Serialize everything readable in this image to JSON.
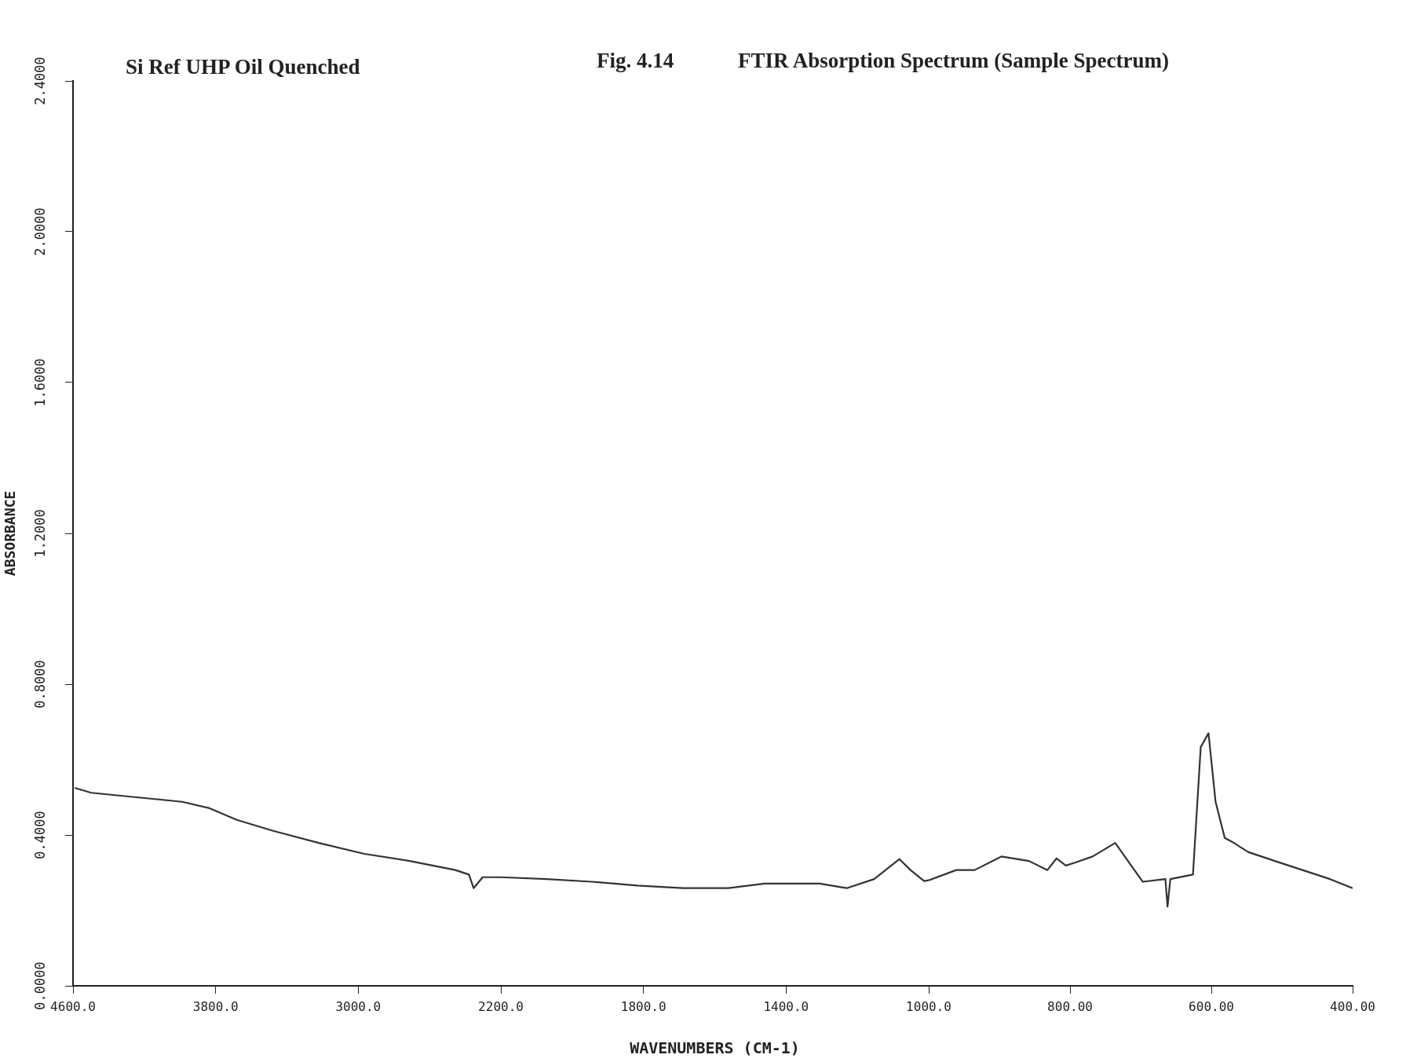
{
  "chart_data": [
    {
      "type": "line",
      "ylabel": "ABSORBANCE",
      "annotations": [
        "Si Ref UHP Oil Quenched"
      ],
      "x": [
        4590,
        4498,
        4243,
        3987,
        3834,
        3681,
        3477,
        3221,
        2966,
        2711,
        2455,
        2379,
        2353,
        2302,
        2200
      ],
      "values": [
        0.525,
        0.512,
        0.5,
        0.488,
        0.471,
        0.44,
        0.411,
        0.379,
        0.35,
        0.331,
        0.307,
        0.295,
        0.259,
        0.288,
        0.288
      ],
      "color": "#333333",
      "marker": "none",
      "line_style": "solid",
      "legend": false,
      "xlim": [
        4600,
        2200
      ],
      "xticks": [
        {
          "value": 4600,
          "label": "4600.0"
        },
        {
          "value": 3800,
          "label": "3800.0"
        },
        {
          "value": 3000,
          "label": "3000.0"
        },
        {
          "value": 2200,
          "label": "2200.0"
        }
      ],
      "ylim": [
        0,
        2.4
      ],
      "yticks": [
        {
          "value": 0,
          "label": "0.0000"
        },
        {
          "value": 0.4,
          "label": "0.4000"
        },
        {
          "value": 0.8,
          "label": "0.8000"
        },
        {
          "value": 1.2,
          "label": "1.2000"
        },
        {
          "value": 1.6,
          "label": "1.6000"
        },
        {
          "value": 2,
          "label": "2.0000"
        },
        {
          "value": 2.4,
          "label": "2.4000"
        }
      ]
    },
    {
      "type": "line",
      "xlabel": "WAVENUMBERS (CM-1)",
      "annotations": [
        "Fig. 4.14"
      ],
      "x": [
        2200,
        2072,
        1945,
        1817,
        1689,
        1562,
        1460,
        1409,
        1306,
        1230,
        1153,
        1082,
        1051,
        1013,
        1000
      ],
      "values": [
        0.288,
        0.283,
        0.276,
        0.266,
        0.259,
        0.259,
        0.271,
        0.271,
        0.271,
        0.259,
        0.283,
        0.336,
        0.307,
        0.278,
        0.28
      ],
      "color": "#333333",
      "marker": "none",
      "line_style": "solid",
      "legend": false,
      "tick_labels": "x",
      "xlim": [
        2200,
        1000
      ],
      "xticks": [
        {
          "value": 1800,
          "label": "1800.0"
        },
        {
          "value": 1400,
          "label": "1400.0"
        },
        {
          "value": 1000,
          "label": "1000.0"
        }
      ],
      "ylim": [
        0,
        2.4
      ]
    },
    {
      "type": "line",
      "title": "FTIR Absorption Spectrum (Sample Spectrum)",
      "x": [
        1000,
        961,
        935,
        897,
        858,
        832,
        819,
        806,
        794,
        768,
        736,
        716,
        697,
        665,
        662,
        658,
        626,
        615,
        604,
        594,
        581,
        568,
        548,
        510,
        471,
        432,
        400
      ],
      "values": [
        0.28,
        0.307,
        0.307,
        0.343,
        0.331,
        0.307,
        0.338,
        0.319,
        0.326,
        0.343,
        0.379,
        0.326,
        0.276,
        0.283,
        0.21,
        0.283,
        0.295,
        0.633,
        0.67,
        0.488,
        0.392,
        0.379,
        0.355,
        0.331,
        0.307,
        0.283,
        0.259
      ],
      "color": "#333333",
      "marker": "none",
      "line_style": "solid",
      "legend": false,
      "tick_labels": "x",
      "xlim": [
        1000,
        400
      ],
      "xticks": [
        {
          "value": 800,
          "label": "800.00"
        },
        {
          "value": 600,
          "label": "600.00"
        },
        {
          "value": 400,
          "label": "400.00"
        }
      ],
      "ylim": [
        0,
        2.4
      ]
    }
  ]
}
